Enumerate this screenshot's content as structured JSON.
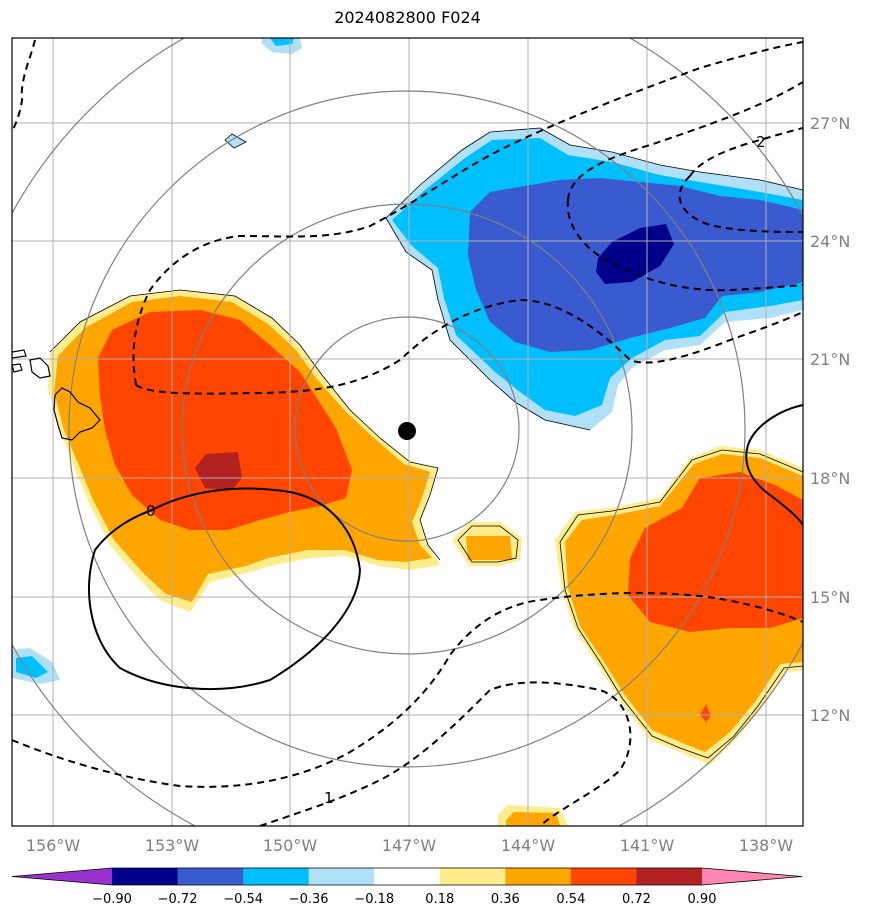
{
  "title": "2024082800 F024",
  "axes": {
    "lon_ticks": [
      "156°W",
      "153°W",
      "150°W",
      "147°W",
      "144°W",
      "141°W",
      "138°W"
    ],
    "lat_ticks": [
      "27°N",
      "24°N",
      "21°N",
      "18°N",
      "15°N",
      "12°N"
    ]
  },
  "contours": {
    "labels": [
      "2",
      "1",
      "0"
    ]
  },
  "colorbar": {
    "labels": [
      "−0.90",
      "−0.72",
      "−0.54",
      "−0.36",
      "−0.18",
      "0.18",
      "0.36",
      "0.54",
      "0.72",
      "0.90"
    ],
    "colors": [
      "#9932cc",
      "#00008b",
      "#3a5bd0",
      "#00bfff",
      "#b0e0f8",
      "#ffffff",
      "#ffec8b",
      "#ffa500",
      "#ff4500",
      "#b22222",
      "#ff86b0"
    ]
  },
  "colors": {
    "range_rings": "#808080",
    "grid": "#b0b0b0",
    "storm_center": "#000000"
  }
}
